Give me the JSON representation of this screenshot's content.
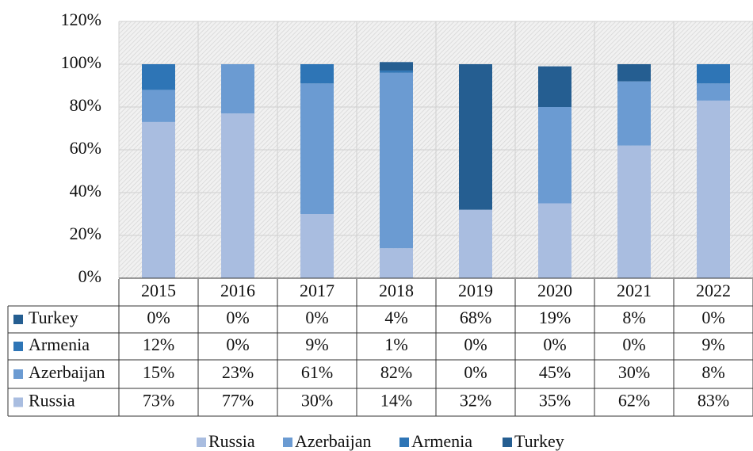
{
  "chart_data": {
    "type": "stacked_bar",
    "categories": [
      "2015",
      "2016",
      "2017",
      "2018",
      "2019",
      "2020",
      "2021",
      "2022"
    ],
    "series": [
      {
        "name": "Russia",
        "color": "#a9bde0",
        "values": [
          73,
          77,
          30,
          14,
          32,
          35,
          62,
          83
        ],
        "value_labels": [
          "73%",
          "77%",
          "30%",
          "14%",
          "32%",
          "35%",
          "62%",
          "83%"
        ]
      },
      {
        "name": "Azerbaijan",
        "color": "#6b9bd2",
        "values": [
          15,
          23,
          61,
          82,
          0,
          45,
          30,
          8
        ],
        "value_labels": [
          "15%",
          "23%",
          "61%",
          "82%",
          "0%",
          "45%",
          "30%",
          "8%"
        ]
      },
      {
        "name": "Armenia",
        "color": "#2e75b6",
        "values": [
          12,
          0,
          9,
          1,
          0,
          0,
          0,
          9
        ],
        "value_labels": [
          "12%",
          "0%",
          "9%",
          "1%",
          "0%",
          "0%",
          "0%",
          "9%"
        ]
      },
      {
        "name": "Turkey",
        "color": "#255e91",
        "values": [
          0,
          0,
          0,
          4,
          68,
          19,
          8,
          0
        ],
        "value_labels": [
          "0%",
          "0%",
          "0%",
          "4%",
          "68%",
          "19%",
          "8%",
          "0%"
        ]
      }
    ],
    "ylim": [
      0,
      120
    ],
    "yticks": [
      {
        "value": 0,
        "label": "0%"
      },
      {
        "value": 20,
        "label": "20%"
      },
      {
        "value": 40,
        "label": "40%"
      },
      {
        "value": 60,
        "label": "60%"
      },
      {
        "value": 80,
        "label": "80%"
      },
      {
        "value": 100,
        "label": "100%"
      },
      {
        "value": 120,
        "label": "120%"
      }
    ],
    "grid": true,
    "legend": "bottom"
  }
}
